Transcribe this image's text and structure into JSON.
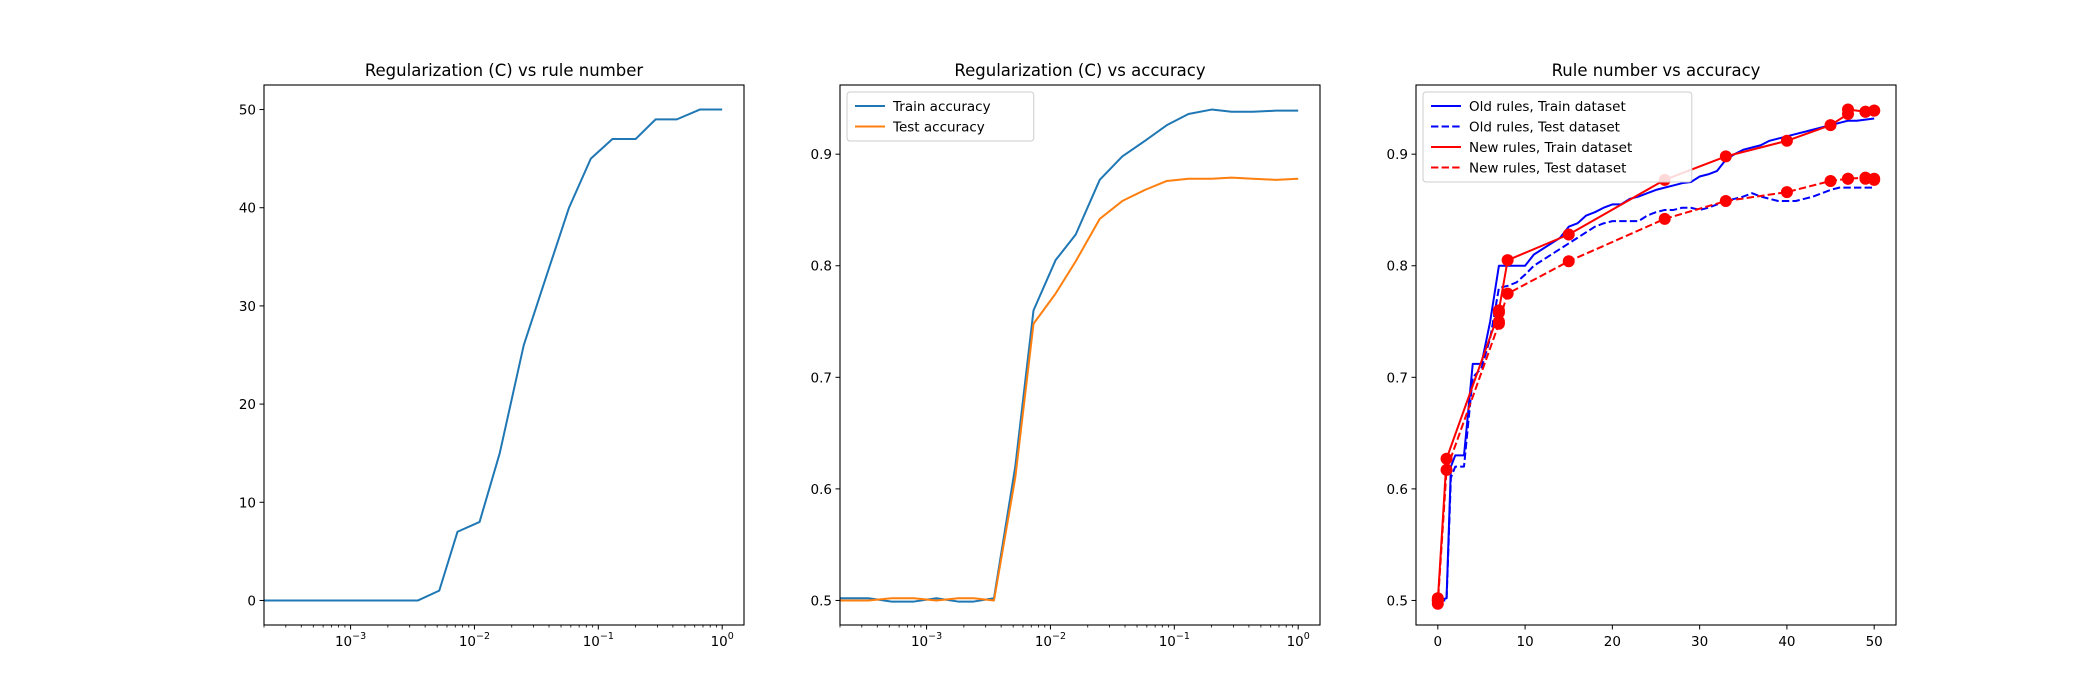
{
  "chart_data": [
    {
      "type": "line",
      "title": "Regularization (C) vs rule number",
      "xscale": "log",
      "xlim": [
        0.0002,
        1.5
      ],
      "ylim": [
        -2.5,
        52.5
      ],
      "x_ticks": [
        {
          "value": 0.001,
          "base": "10",
          "exp": "−3"
        },
        {
          "value": 0.01,
          "base": "10",
          "exp": "−2"
        },
        {
          "value": 0.1,
          "base": "10",
          "exp": "−1"
        },
        {
          "value": 1,
          "base": "10",
          "exp": "0"
        }
      ],
      "y_ticks": [
        0,
        10,
        20,
        30,
        40,
        50
      ],
      "legend": "none",
      "series": [
        {
          "color": "#1f77b4",
          "dash": "solid",
          "markers": false,
          "x": [
            0.0002,
            0.00034,
            0.00052,
            0.00079,
            0.0012,
            0.0018,
            0.0024,
            0.0035,
            0.0052,
            0.0073,
            0.011,
            0.016,
            0.025,
            0.038,
            0.058,
            0.087,
            0.13,
            0.2,
            0.29,
            0.43,
            0.66,
            1.0
          ],
          "y": [
            0,
            0,
            0,
            0,
            0,
            0,
            0,
            0,
            1,
            7,
            8,
            15,
            26,
            33,
            40,
            45,
            47,
            47,
            49,
            49,
            50,
            50
          ]
        }
      ]
    },
    {
      "type": "line",
      "title": "Regularization (C) vs accuracy",
      "xscale": "log",
      "xlim": [
        0.0002,
        1.5
      ],
      "ylim": [
        0.478,
        0.962
      ],
      "x_ticks": [
        {
          "value": 0.001,
          "base": "10",
          "exp": "−3"
        },
        {
          "value": 0.01,
          "base": "10",
          "exp": "−2"
        },
        {
          "value": 0.1,
          "base": "10",
          "exp": "−1"
        },
        {
          "value": 1,
          "base": "10",
          "exp": "0"
        }
      ],
      "y_ticks": [
        0.5,
        0.6,
        0.7,
        0.8,
        0.9
      ],
      "y_tick_labels": [
        "0.5",
        "0.6",
        "0.7",
        "0.8",
        "0.9"
      ],
      "legend": "top-left",
      "series": [
        {
          "name": "Train accuracy",
          "color": "#1f77b4",
          "dash": "solid",
          "markers": false,
          "x": [
            0.0002,
            0.00034,
            0.00052,
            0.00079,
            0.0012,
            0.0018,
            0.0024,
            0.0035,
            0.0052,
            0.0073,
            0.011,
            0.016,
            0.025,
            0.038,
            0.058,
            0.087,
            0.13,
            0.2,
            0.29,
            0.43,
            0.66,
            1.0
          ],
          "y": [
            0.502,
            0.502,
            0.499,
            0.499,
            0.502,
            0.499,
            0.499,
            0.502,
            0.62,
            0.76,
            0.805,
            0.828,
            0.877,
            0.898,
            0.912,
            0.926,
            0.936,
            0.94,
            0.938,
            0.938,
            0.939,
            0.939
          ]
        },
        {
          "name": "Test accuracy",
          "color": "#ff7f0e",
          "dash": "solid",
          "markers": false,
          "x": [
            0.0002,
            0.00034,
            0.00052,
            0.00079,
            0.0012,
            0.0018,
            0.0024,
            0.0035,
            0.0052,
            0.0073,
            0.011,
            0.016,
            0.025,
            0.038,
            0.058,
            0.087,
            0.13,
            0.2,
            0.29,
            0.43,
            0.66,
            1.0
          ],
          "y": [
            0.5,
            0.5,
            0.502,
            0.502,
            0.5,
            0.502,
            0.502,
            0.5,
            0.61,
            0.748,
            0.775,
            0.804,
            0.842,
            0.858,
            0.868,
            0.876,
            0.878,
            0.878,
            0.879,
            0.878,
            0.877,
            0.878
          ]
        }
      ]
    },
    {
      "type": "line",
      "title": "Rule number vs accuracy",
      "xscale": "linear",
      "xlim": [
        -2.5,
        52.5
      ],
      "ylim": [
        0.478,
        0.962
      ],
      "x_ticks": [
        {
          "value": 0,
          "label": "0"
        },
        {
          "value": 10,
          "label": "10"
        },
        {
          "value": 20,
          "label": "20"
        },
        {
          "value": 30,
          "label": "30"
        },
        {
          "value": 40,
          "label": "40"
        },
        {
          "value": 50,
          "label": "50"
        }
      ],
      "y_ticks": [
        0.5,
        0.6,
        0.7,
        0.8,
        0.9
      ],
      "y_tick_labels": [
        "0.5",
        "0.6",
        "0.7",
        "0.8",
        "0.9"
      ],
      "legend": "top-left",
      "series": [
        {
          "name": "Old rules, Train dataset",
          "color": "#0000ff",
          "dash": "solid",
          "markers": false,
          "x": [
            0,
            1,
            1.5,
            2,
            3,
            4,
            5,
            6,
            7,
            8,
            9,
            10,
            11,
            12,
            13,
            14,
            15,
            16,
            17,
            18,
            19,
            20,
            21,
            22,
            23,
            24,
            25,
            26,
            27,
            28,
            29,
            30,
            31,
            32,
            33,
            34,
            35,
            36,
            37,
            38,
            39,
            40,
            41,
            42,
            43,
            44,
            45,
            46,
            47,
            48,
            49,
            50
          ],
          "y": [
            0.5,
            0.502,
            0.62,
            0.63,
            0.63,
            0.712,
            0.712,
            0.75,
            0.8,
            0.8,
            0.8,
            0.8,
            0.81,
            0.815,
            0.82,
            0.825,
            0.835,
            0.838,
            0.845,
            0.848,
            0.852,
            0.855,
            0.855,
            0.86,
            0.862,
            0.865,
            0.868,
            0.87,
            0.872,
            0.874,
            0.875,
            0.88,
            0.882,
            0.885,
            0.895,
            0.9,
            0.904,
            0.906,
            0.908,
            0.912,
            0.914,
            0.916,
            0.918,
            0.92,
            0.922,
            0.924,
            0.926,
            0.928,
            0.93,
            0.93,
            0.931,
            0.932
          ]
        },
        {
          "name": "Old rules, Test dataset",
          "color": "#0000ff",
          "dash": "dashed",
          "markers": false,
          "x": [
            0,
            1,
            1.5,
            2,
            3,
            4,
            5,
            6,
            7,
            8,
            9,
            10,
            11,
            12,
            13,
            14,
            15,
            16,
            17,
            18,
            19,
            20,
            21,
            22,
            23,
            24,
            25,
            26,
            27,
            28,
            29,
            30,
            31,
            32,
            33,
            34,
            35,
            36,
            37,
            38,
            39,
            40,
            41,
            42,
            43,
            44,
            45,
            46,
            47,
            48,
            49,
            50
          ],
          "y": [
            0.5,
            0.5,
            0.61,
            0.62,
            0.62,
            0.7,
            0.708,
            0.735,
            0.78,
            0.782,
            0.785,
            0.792,
            0.8,
            0.805,
            0.81,
            0.815,
            0.82,
            0.825,
            0.83,
            0.835,
            0.838,
            0.84,
            0.84,
            0.84,
            0.84,
            0.845,
            0.848,
            0.85,
            0.85,
            0.852,
            0.852,
            0.85,
            0.852,
            0.855,
            0.858,
            0.86,
            0.862,
            0.865,
            0.862,
            0.86,
            0.858,
            0.858,
            0.858,
            0.86,
            0.862,
            0.865,
            0.868,
            0.87,
            0.87,
            0.87,
            0.87,
            0.87
          ]
        },
        {
          "name": "New rules, Train dataset",
          "color": "#ff0000",
          "dash": "solid",
          "markers": true,
          "x": [
            0,
            0,
            1,
            7,
            7,
            8,
            15,
            26,
            33,
            40,
            45,
            47,
            47,
            49,
            49,
            50,
            50
          ],
          "y": [
            0.502,
            0.5,
            0.627,
            0.758,
            0.76,
            0.805,
            0.828,
            0.877,
            0.898,
            0.912,
            0.926,
            0.936,
            0.94,
            0.938,
            0.938,
            0.939,
            0.939
          ]
        },
        {
          "name": "New rules, Test dataset",
          "color": "#ff0000",
          "dash": "dashed",
          "markers": true,
          "x": [
            0,
            0,
            1,
            7,
            7,
            8,
            15,
            26,
            33,
            40,
            45,
            47,
            47,
            49,
            49,
            50,
            50
          ],
          "y": [
            0.5,
            0.497,
            0.617,
            0.748,
            0.75,
            0.775,
            0.804,
            0.842,
            0.858,
            0.866,
            0.876,
            0.878,
            0.878,
            0.879,
            0.878,
            0.877,
            0.878
          ]
        }
      ]
    }
  ]
}
